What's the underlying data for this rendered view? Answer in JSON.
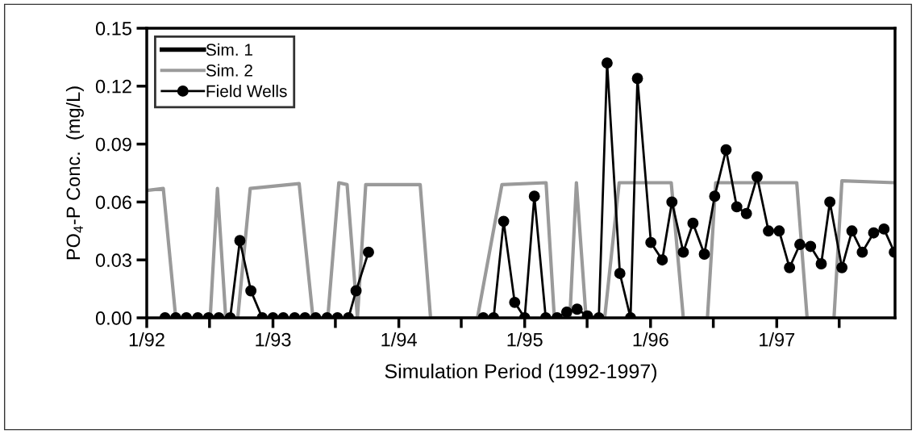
{
  "chart_data": {
    "type": "line",
    "xlabel": "Simulation Period (1992-1997)",
    "ylabel": "PO$_{4}$-P Conc.  (mg/L)",
    "xlim": [
      "1992-01-01",
      "1997-12-10"
    ],
    "xticks": [
      {
        "value": "1992-01-01",
        "label": "1/92"
      },
      {
        "value": "1992-07-01",
        "label": null
      },
      {
        "value": "1993-01-01",
        "label": "1/93"
      },
      {
        "value": "1993-07-01",
        "label": null
      },
      {
        "value": "1994-01-01",
        "label": "1/94"
      },
      {
        "value": "1994-07-01",
        "label": null
      },
      {
        "value": "1995-01-01",
        "label": "1/95"
      },
      {
        "value": "1995-07-01",
        "label": null
      },
      {
        "value": "1996-01-01",
        "label": "1/96"
      },
      {
        "value": "1996-07-01",
        "label": null
      },
      {
        "value": "1997-01-01",
        "label": "1/97"
      },
      {
        "value": "1997-07-01",
        "label": null
      }
    ],
    "ylim": [
      0,
      0.15
    ],
    "yticks": [
      {
        "value": 0,
        "label": "0.00"
      },
      {
        "value": 0.03,
        "label": "0.03"
      },
      {
        "value": 0.06,
        "label": "0.06"
      },
      {
        "value": 0.09,
        "label": "0.09"
      },
      {
        "value": 0.12,
        "label": "0.12"
      },
      {
        "value": 0.15,
        "label": "0.15"
      }
    ],
    "legend": "top left",
    "grid": false,
    "series": [
      {
        "name": "Sim. 1",
        "color": "#000000",
        "marker": "none"
      },
      {
        "name": "Sim. 2",
        "color": "#9a9a9a",
        "marker": "none",
        "x": [
          "1992-01-01",
          "1992-02-18",
          "1992-03-25",
          "1992-07-03",
          "1992-07-24",
          "1992-08-17",
          "1992-09-21",
          "1992-10-27",
          "1993-03-18",
          "1993-04-27",
          "1993-06-09",
          "1993-07-11",
          "1993-08-04",
          "1993-09-03",
          "1993-09-27",
          "1994-03-04",
          "1994-04-03",
          "1994-08-17",
          "1994-10-27",
          "1995-03-04",
          "1995-03-28",
          "1995-05-12",
          "1995-05-31",
          "1995-06-28",
          "1995-08-21",
          "1995-10-02",
          "1996-03-01",
          "1996-04-05",
          "1996-06-14",
          "1996-07-08",
          "1997-02-28",
          "1997-03-30",
          "1997-06-16",
          "1997-07-09",
          "1997-12-08"
        ],
        "values": [
          0.066,
          0.067,
          0,
          0,
          0.067,
          0,
          0,
          0.067,
          0.0695,
          0,
          0,
          0.07,
          0.069,
          0,
          0.069,
          0.069,
          0,
          0,
          0.069,
          0.07,
          0,
          0,
          0.07,
          0,
          0,
          0.07,
          0.07,
          0,
          0,
          0.07,
          0.07,
          0,
          0,
          0.071,
          0.07
        ]
      },
      {
        "name": "Field Wells",
        "color": "#000000",
        "marker": "circle",
        "x": [
          "1992-02-23",
          "1992-03-25",
          "1992-04-25",
          "1992-05-28",
          "1992-06-28",
          "1992-07-28",
          "1992-08-30",
          "1992-09-27",
          "1992-10-29",
          "1992-12-01",
          "1993-01-01",
          "1993-01-31",
          "1993-03-05",
          "1993-04-04",
          "1993-05-05",
          "1993-06-07",
          "1993-07-07",
          "1993-08-08",
          "1993-08-30",
          "1993-10-05",
          "1994-03-01",
          "1994-09-03",
          "1994-10-03",
          "1994-11-01",
          "1994-12-03",
          "1995-01-01",
          "1995-01-29",
          "1995-03-03",
          "1995-04-05",
          "1995-05-03",
          "1995-06-02",
          "1995-07-02",
          "1995-08-04",
          "1995-08-28",
          "1995-10-04",
          "1995-11-04",
          "1995-11-24",
          "1996-01-02",
          "1996-02-04",
          "1996-03-03",
          "1996-04-05",
          "1996-05-03",
          "1996-06-05",
          "1996-07-05",
          "1996-08-07",
          "1996-09-07",
          "1996-10-05",
          "1996-11-05",
          "1996-12-08",
          "1997-01-08",
          "1997-02-07",
          "1997-03-09",
          "1997-04-09",
          "1997-05-10",
          "1997-06-04",
          "1997-07-09",
          "1997-08-07",
          "1997-09-06",
          "1997-10-09",
          "1997-11-08",
          "1997-12-08"
        ],
        "values": [
          0,
          0,
          0,
          0,
          0,
          0,
          0,
          0.04,
          0.014,
          0,
          0,
          0,
          0,
          0,
          0,
          0,
          0,
          0,
          0.014,
          0.034,
          null,
          0,
          0,
          0.05,
          0.008,
          0,
          0.063,
          0,
          0,
          0.003,
          0.0045,
          0.001,
          0,
          0.132,
          0.023,
          0,
          0.124,
          0.039,
          0.03,
          0.06,
          0.034,
          0.049,
          0.033,
          0.063,
          0.087,
          0.0575,
          0.054,
          0.073,
          0.045,
          0.045,
          0.026,
          0.038,
          0.037,
          0.028,
          0.06,
          0.026,
          0.045,
          0.034,
          0.044,
          0.046,
          0.034
        ]
      }
    ]
  }
}
